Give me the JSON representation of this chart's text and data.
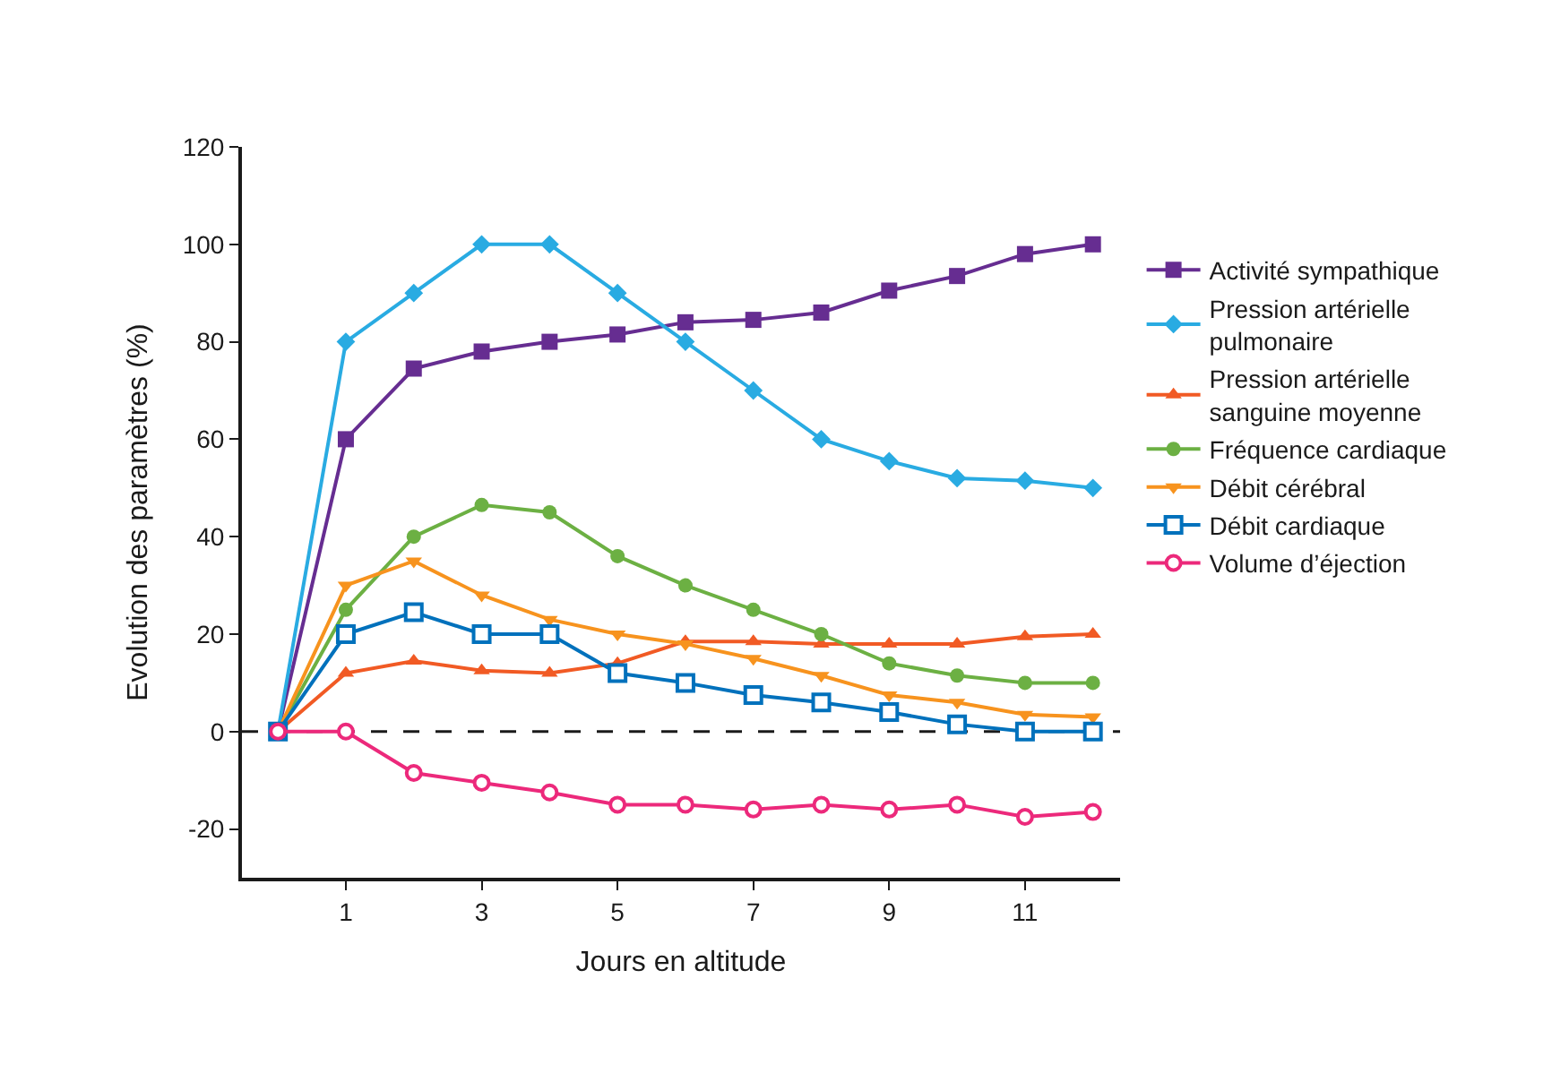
{
  "chart_data": {
    "type": "line",
    "xlabel": "Jours en altitude",
    "ylabel": "Evolution des paramètres (%)",
    "x": [
      0,
      1,
      2,
      3,
      4,
      5,
      6,
      7,
      8,
      9,
      10,
      11,
      12
    ],
    "xlim": [
      -0.53,
      12.4
    ],
    "xticks": [
      1,
      3,
      5,
      7,
      9,
      11
    ],
    "ylim": [
      -30,
      120
    ],
    "yticks": [
      -20,
      0,
      20,
      40,
      60,
      80,
      100,
      120
    ],
    "grid": false,
    "legend": "right",
    "ref_lines": [
      {
        "axis": "y",
        "value": 0,
        "color": "#1a1a1a",
        "line_style": "dashed"
      }
    ],
    "series": [
      {
        "name": "Activité sympathique",
        "color": "#662d91",
        "marker": "square",
        "values": [
          0,
          60,
          74.5,
          78,
          80,
          81.5,
          84,
          84.5,
          86,
          90.5,
          93.5,
          98,
          100
        ]
      },
      {
        "name": "Pression artérielle pulmonaire",
        "color": "#29abe2",
        "marker": "diamond",
        "values": [
          0,
          80,
          90,
          100,
          100,
          90,
          80,
          70,
          60,
          55.5,
          52,
          51.5,
          50
        ]
      },
      {
        "name": "Pression artérielle sanguine moyenne",
        "color": "#f15a24",
        "marker": "triangle",
        "values": [
          0,
          12,
          14.5,
          12.5,
          12,
          14,
          18.5,
          18.5,
          18,
          18,
          18,
          19.5,
          20
        ]
      },
      {
        "name": "Fréquence cardiaque",
        "color": "#6cb043",
        "marker": "circle",
        "values": [
          0,
          25,
          40,
          46.5,
          45,
          36,
          30,
          25,
          20,
          14,
          11.5,
          10,
          10
        ]
      },
      {
        "name": "Débit cérébral",
        "color": "#f7931e",
        "marker": "triangle-down",
        "values": [
          0,
          30,
          35,
          28,
          23,
          20,
          18,
          15,
          11.5,
          7.5,
          6,
          3.5,
          3
        ]
      },
      {
        "name": "Débit cardiaque",
        "color": "#0071bc",
        "marker": "square-open",
        "values": [
          0,
          20,
          24.5,
          20,
          20,
          12,
          10,
          7.5,
          6,
          4,
          1.5,
          0,
          0
        ]
      },
      {
        "name": "Volume d’éjection",
        "color": "#ec297b",
        "marker": "circle-open",
        "values": [
          0,
          0,
          -8.5,
          -10.5,
          -12.5,
          -15,
          -15,
          -16,
          -15,
          -16,
          -15,
          -17.5,
          -16.5
        ]
      }
    ]
  }
}
